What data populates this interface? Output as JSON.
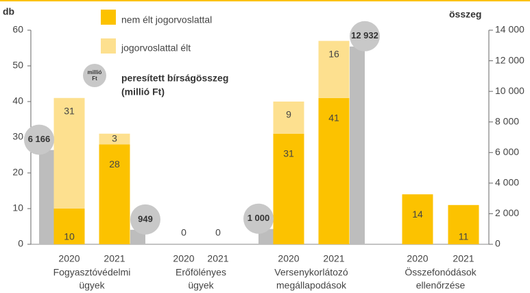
{
  "chart_data": {
    "type": "bar",
    "y_title": "db",
    "y2_title": "összeg",
    "categories": [
      "2020",
      "2021",
      "2020",
      "2021",
      "2020",
      "2021",
      "2020",
      "2021"
    ],
    "groups": [
      [
        "Fogyasztóvédelmi",
        "ügyek"
      ],
      [
        "Erőfölényes",
        "ügyek"
      ],
      [
        "Versenykorlátozó",
        "megállapodások"
      ],
      [
        "Összefonódások",
        "ellenőrzése"
      ]
    ],
    "series": [
      {
        "name": "nem élt jogorvoslattal",
        "color": "#fcc200",
        "values": [
          10,
          28,
          0,
          0,
          31,
          41,
          14,
          11
        ]
      },
      {
        "name": "jogorvoslattal élt",
        "color": "#fde08f",
        "values": [
          31,
          3,
          null,
          null,
          9,
          16,
          null,
          null
        ]
      },
      {
        "name": [
          "peresített bírságösszeg",
          "(millió Ft)"
        ],
        "color": "#bdbdbd",
        "axis": "y2",
        "unit": [
          "millió",
          "Ft"
        ],
        "values": [
          6166,
          949,
          null,
          null,
          1000,
          12932,
          null,
          null
        ],
        "value_labels": [
          "6 166",
          "949",
          null,
          null,
          "1 000",
          "12 932",
          null,
          null
        ]
      }
    ],
    "ylim": [
      0,
      60
    ],
    "yticks": [
      0,
      10,
      20,
      30,
      40,
      50,
      60
    ],
    "y2lim": [
      0,
      14000
    ],
    "y2ticks": [
      0,
      {
        "value": 2000,
        "label": "2 000"
      },
      {
        "value": 4000,
        "label": "4 000"
      },
      {
        "value": 6000,
        "label": "6 000"
      },
      {
        "value": 8000,
        "label": "8 000"
      },
      {
        "value": 10000,
        "label": "10 000"
      },
      {
        "value": 12000,
        "label": "12 000"
      },
      {
        "value": 14000,
        "label": "14 000"
      }
    ]
  }
}
